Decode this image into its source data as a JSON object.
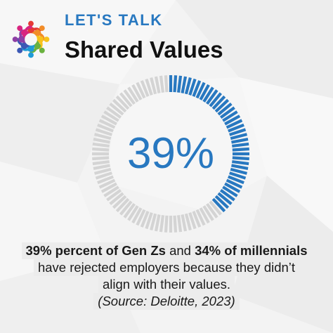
{
  "header": {
    "kicker": "LET'S TALK",
    "title": "Shared Values"
  },
  "logo": {
    "icon": "people-circle-logo",
    "colors": [
      "#e53935",
      "#f28c28",
      "#f7c21a",
      "#6ab23f",
      "#1f9bd7",
      "#3b58b5",
      "#8e3fa5",
      "#d8247f"
    ]
  },
  "gauge": {
    "value_label": "39%",
    "fraction": 0.39,
    "active_color": "#2878c0",
    "inactive_color": "#d4d4d4"
  },
  "caption": {
    "stat1": "39% percent of Gen Zs",
    "and": " and ",
    "stat2": "34% of millennials",
    "line2": "have rejected employers because they didn’t",
    "line3": "align with their values.",
    "source": "(Source: Deloitte, 2023)"
  }
}
